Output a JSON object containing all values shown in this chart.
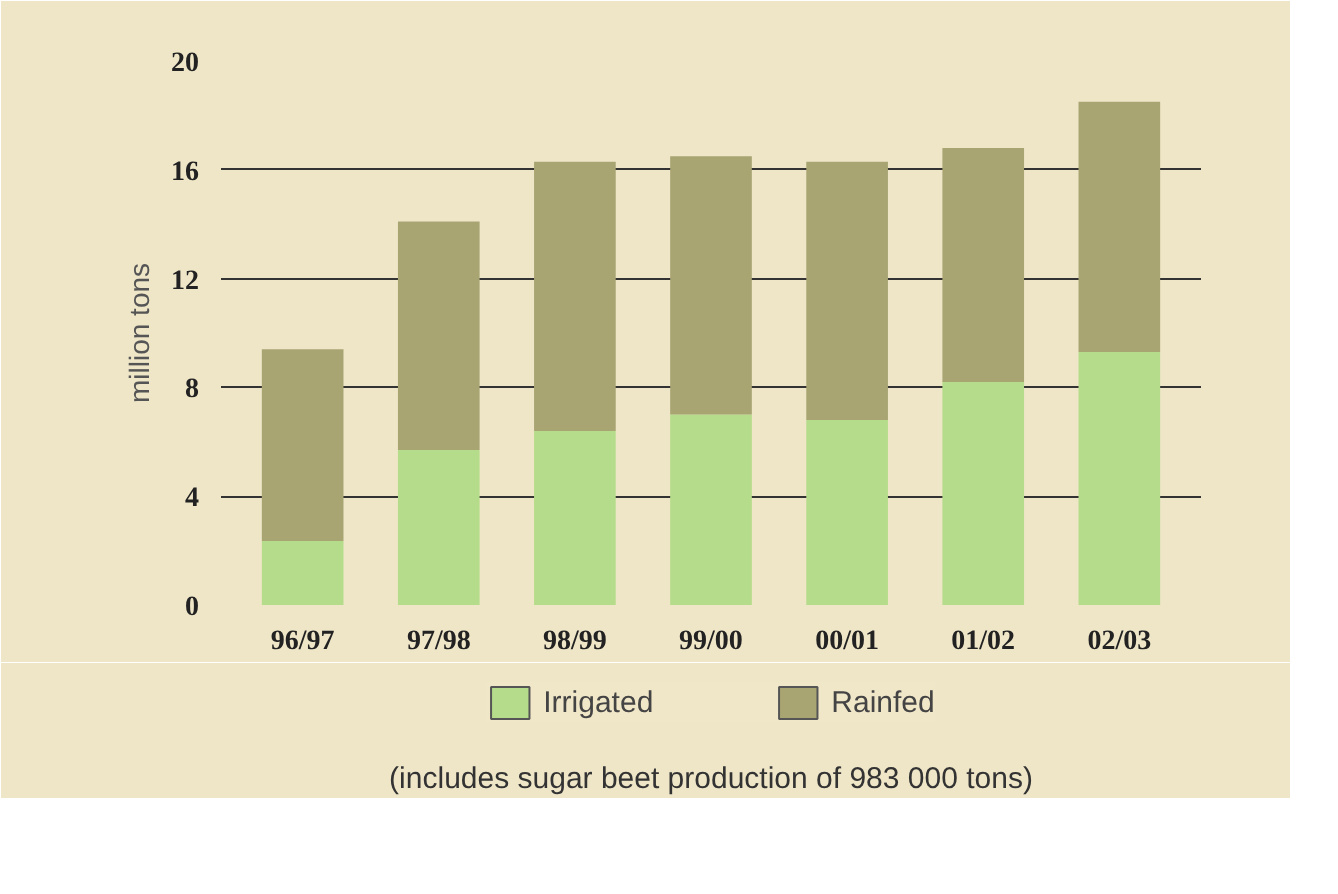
{
  "chart_data": {
    "type": "bar",
    "stacked": true,
    "ylabel": "million tons",
    "categories": [
      "96/97",
      "97/98",
      "98/99",
      "99/00",
      "00/01",
      "01/02",
      "02/03"
    ],
    "series": [
      {
        "name": "Irrigated",
        "color": "#b5dc8a",
        "values": [
          2.35,
          5.7,
          6.4,
          7.0,
          6.8,
          8.2,
          9.3
        ]
      },
      {
        "name": "Rainfed",
        "color": "#a8a573",
        "values": [
          7.05,
          8.4,
          9.9,
          9.5,
          9.5,
          8.6,
          9.2
        ]
      }
    ],
    "ylim": [
      0,
      20
    ],
    "yticks": [
      0,
      4,
      8,
      12,
      16,
      20
    ],
    "grid": "y",
    "legend": "bottom",
    "annotations": [
      "(includes sugar beet production of 983 000 tons)"
    ]
  }
}
